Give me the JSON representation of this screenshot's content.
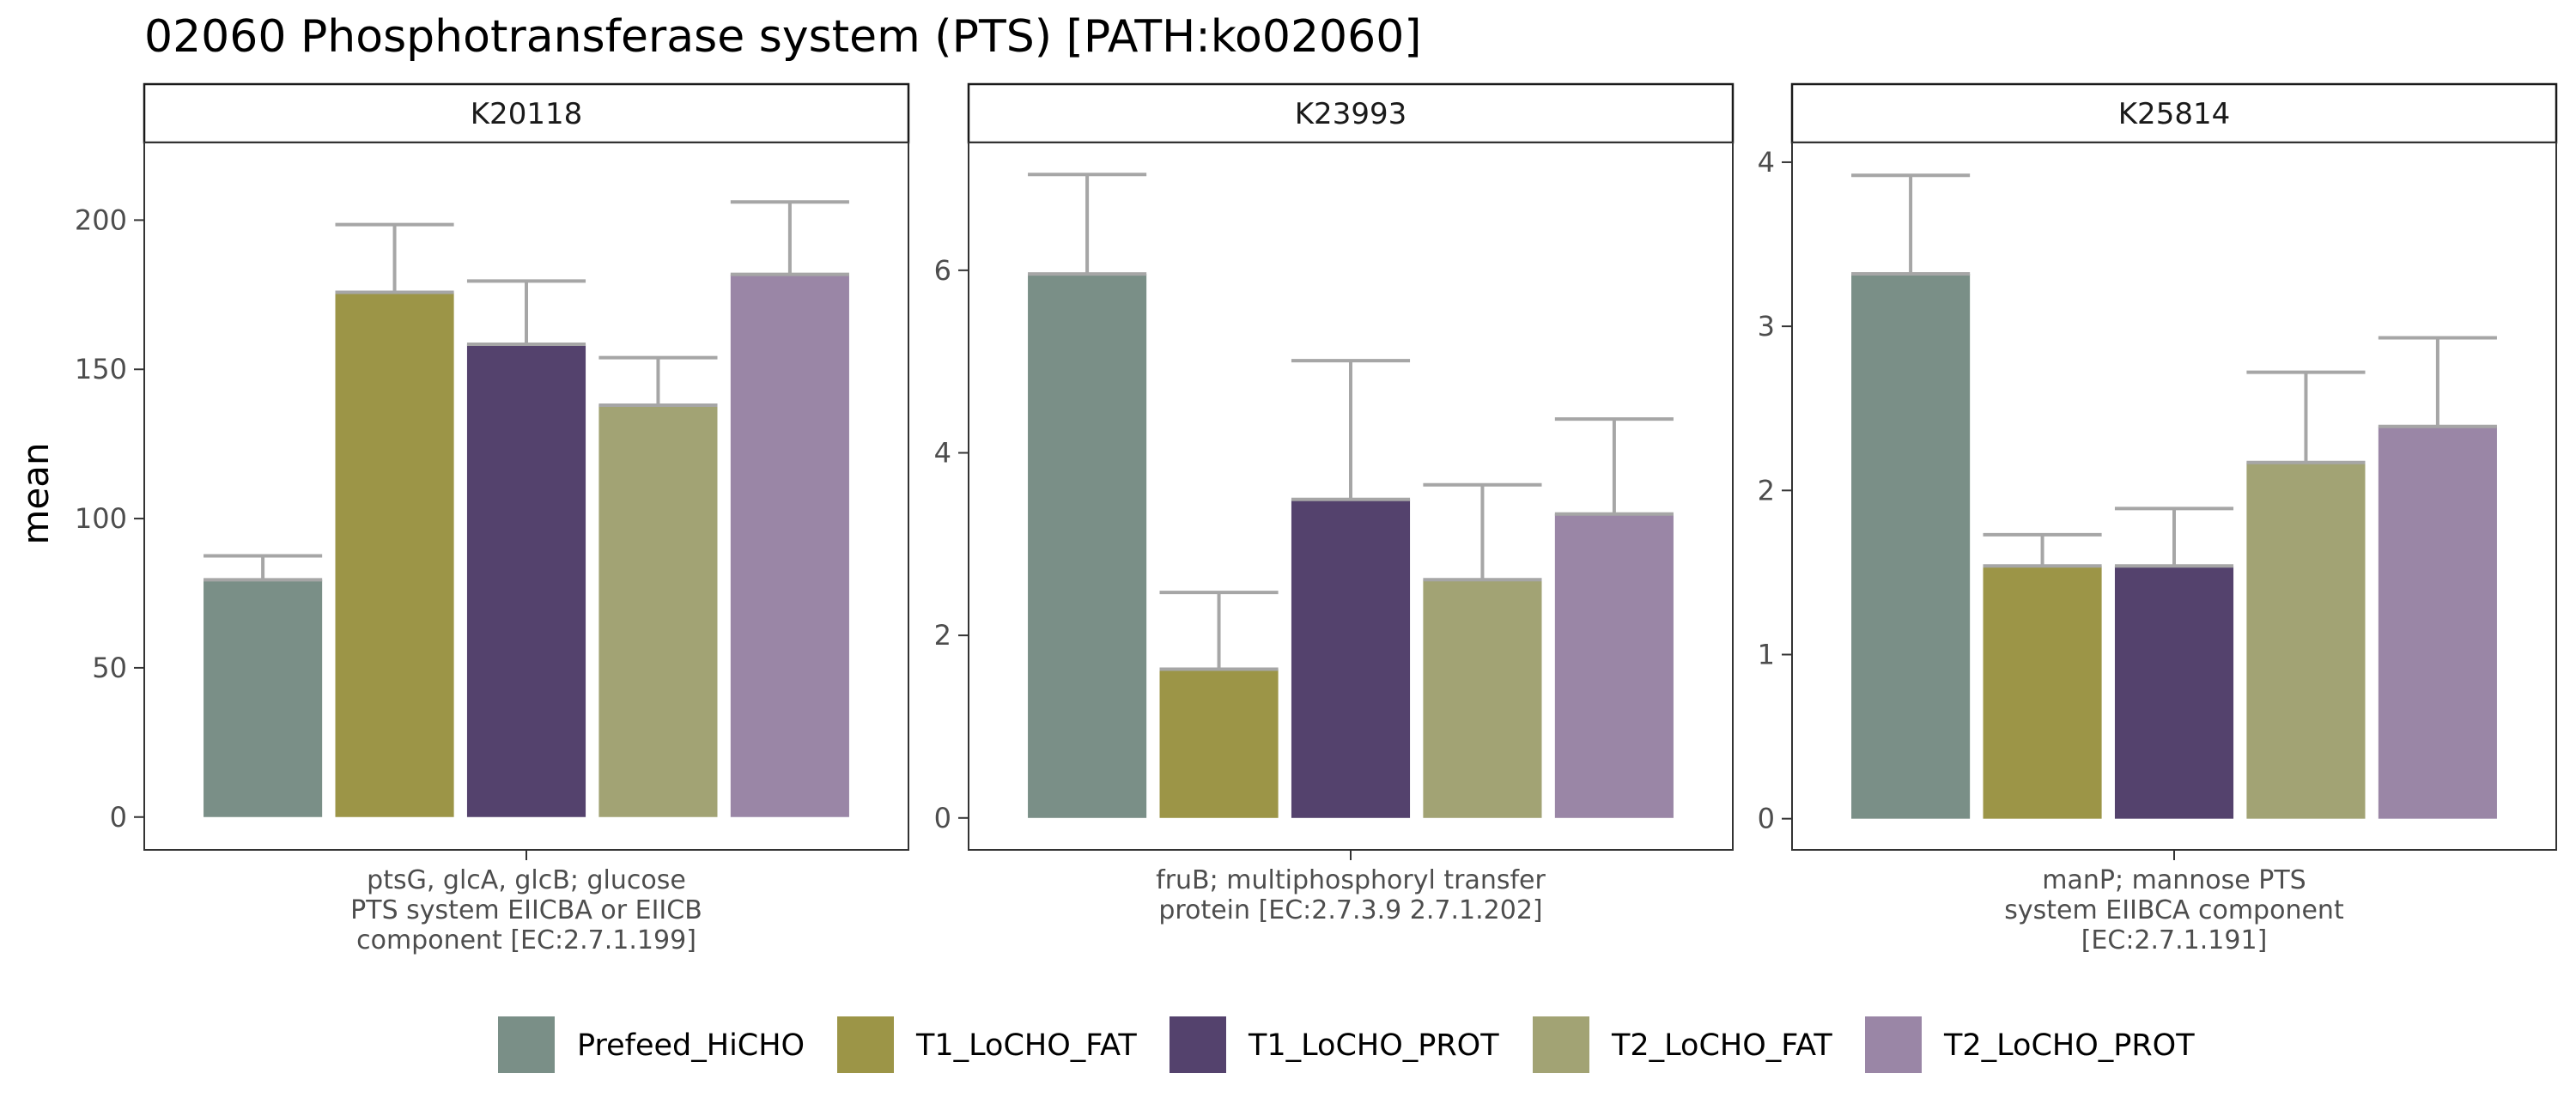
{
  "chart_data": {
    "type": "bar",
    "title": "02060 Phosphotransferase system (PTS) [PATH:ko02060]",
    "ylabel": "mean",
    "xlabel": "",
    "grid": false,
    "legend_position": "bottom",
    "groups": [
      "Prefeed_HiCHO",
      "T1_LoCHO_FAT",
      "T1_LoCHO_PROT",
      "T2_LoCHO_FAT",
      "T2_LoCHO_PROT"
    ],
    "colors": [
      "#7A8F87",
      "#9C9547",
      "#54426D",
      "#A2A374",
      "#9A86A6"
    ],
    "error_bar_color": "#A6A6A6",
    "panels": [
      {
        "strip": "K20118",
        "category_lines": [
          "ptsG, glcA, glcB; glucose",
          "PTS system EIICBA or EIICB",
          "component [EC:2.7.1.199]"
        ],
        "ylim": [
          -11,
          226
        ],
        "yticks": [
          0,
          50,
          100,
          150,
          200
        ],
        "values": [
          79.5,
          175.8,
          158.4,
          138.0,
          181.8
        ],
        "errors": [
          87.5,
          198.5,
          179.6,
          153.9,
          206.1
        ]
      },
      {
        "strip": "K23993",
        "category_lines": [
          "fruB; multiphosphoryl transfer",
          "protein [EC:2.7.3.9 2.7.1.202]"
        ],
        "ylim": [
          -0.35,
          7.4
        ],
        "yticks": [
          0,
          2,
          4,
          6
        ],
        "values": [
          5.96,
          1.63,
          3.49,
          2.61,
          3.33
        ],
        "errors": [
          7.05,
          2.47,
          5.01,
          3.65,
          4.37
        ]
      },
      {
        "strip": "K25814",
        "category_lines": [
          "manP; mannose PTS",
          "system EIIBCA component",
          "[EC:2.7.1.191]"
        ],
        "ylim": [
          -0.19,
          4.12
        ],
        "yticks": [
          0,
          1,
          2,
          3,
          4
        ],
        "values": [
          3.32,
          1.54,
          1.54,
          2.17,
          2.39
        ],
        "errors": [
          3.92,
          1.73,
          1.89,
          2.72,
          2.93
        ]
      }
    ]
  }
}
